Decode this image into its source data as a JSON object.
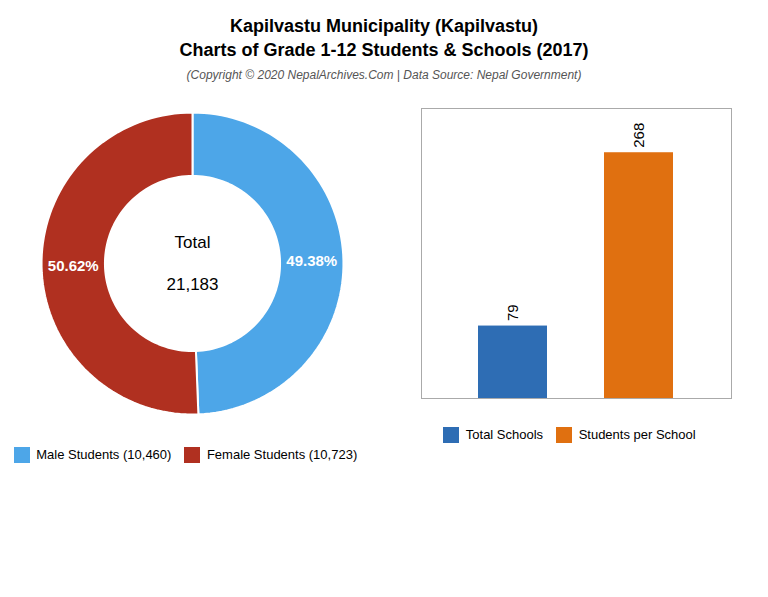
{
  "title": "Kapilvastu Municipality (Kapilvastu)\nCharts of Grade 1-12 Students & Schools (2017)",
  "subtitle": "(Copyright © 2020 NepalArchives.Com | Data Source: Nepal Government)",
  "chart_data": [
    {
      "type": "pie",
      "categories": [
        "Male Students (10,460)",
        "Female Students (10,723)"
      ],
      "values": [
        49.38,
        50.62
      ],
      "value_labels": [
        "49.38%",
        "50.62%"
      ],
      "data_labels": true,
      "colors": [
        "#4da6e8",
        "#b03020"
      ],
      "legend": "bottom",
      "annotations": [
        "Total",
        "21,183"
      ]
    },
    {
      "type": "bar",
      "categories": [
        "Total Schools",
        "Students per School"
      ],
      "values": [
        79,
        268
      ],
      "colors": [
        "#2e6db4",
        "#e07010"
      ],
      "ylim": [
        0,
        316.24
      ],
      "data_labels": true,
      "tick_labels": false,
      "legend": "bottom"
    }
  ]
}
